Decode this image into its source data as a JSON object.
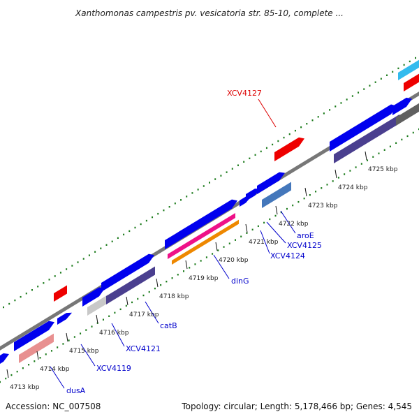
{
  "title": "Xanthomonas campestris pv. vesicatoria str. 85-10, complete ...",
  "footer": {
    "accession": "Accession: NC_007508",
    "summary": "Topology: circular; Length: 5,178,466 bp; Genes: 4,545"
  },
  "ticks": [
    {
      "label": "4713 kbp"
    },
    {
      "label": "4714 kbp"
    },
    {
      "label": "4715 kbp"
    },
    {
      "label": "4716 kbp"
    },
    {
      "label": "4717 kbp"
    },
    {
      "label": "4718 kbp"
    },
    {
      "label": "4719 kbp"
    },
    {
      "label": "4720 kbp"
    },
    {
      "label": "4721 kbp"
    },
    {
      "label": "4722 kbp"
    },
    {
      "label": "4723 kbp"
    },
    {
      "label": "4724 kbp"
    },
    {
      "label": "4725 kbp"
    }
  ],
  "gene_labels": [
    {
      "name": "dusA",
      "color": "#0000cc"
    },
    {
      "name": "XCV4119",
      "color": "#0000cc"
    },
    {
      "name": "XCV4121",
      "color": "#0000cc"
    },
    {
      "name": "catB",
      "color": "#0000cc"
    },
    {
      "name": "dinG",
      "color": "#0000cc"
    },
    {
      "name": "XCV4124",
      "color": "#0000cc"
    },
    {
      "name": "XCV4125",
      "color": "#0000cc"
    },
    {
      "name": "aroE",
      "color": "#0000cc"
    },
    {
      "name": "XCV4127",
      "color": "#dd0000"
    }
  ],
  "colors": {
    "backbone": "#777777",
    "forward_gene": "#0000ee",
    "reverse_gene": "#4a3f8f",
    "highlight_gene": "#ee0000",
    "dot_track": "#1a7a1a"
  }
}
